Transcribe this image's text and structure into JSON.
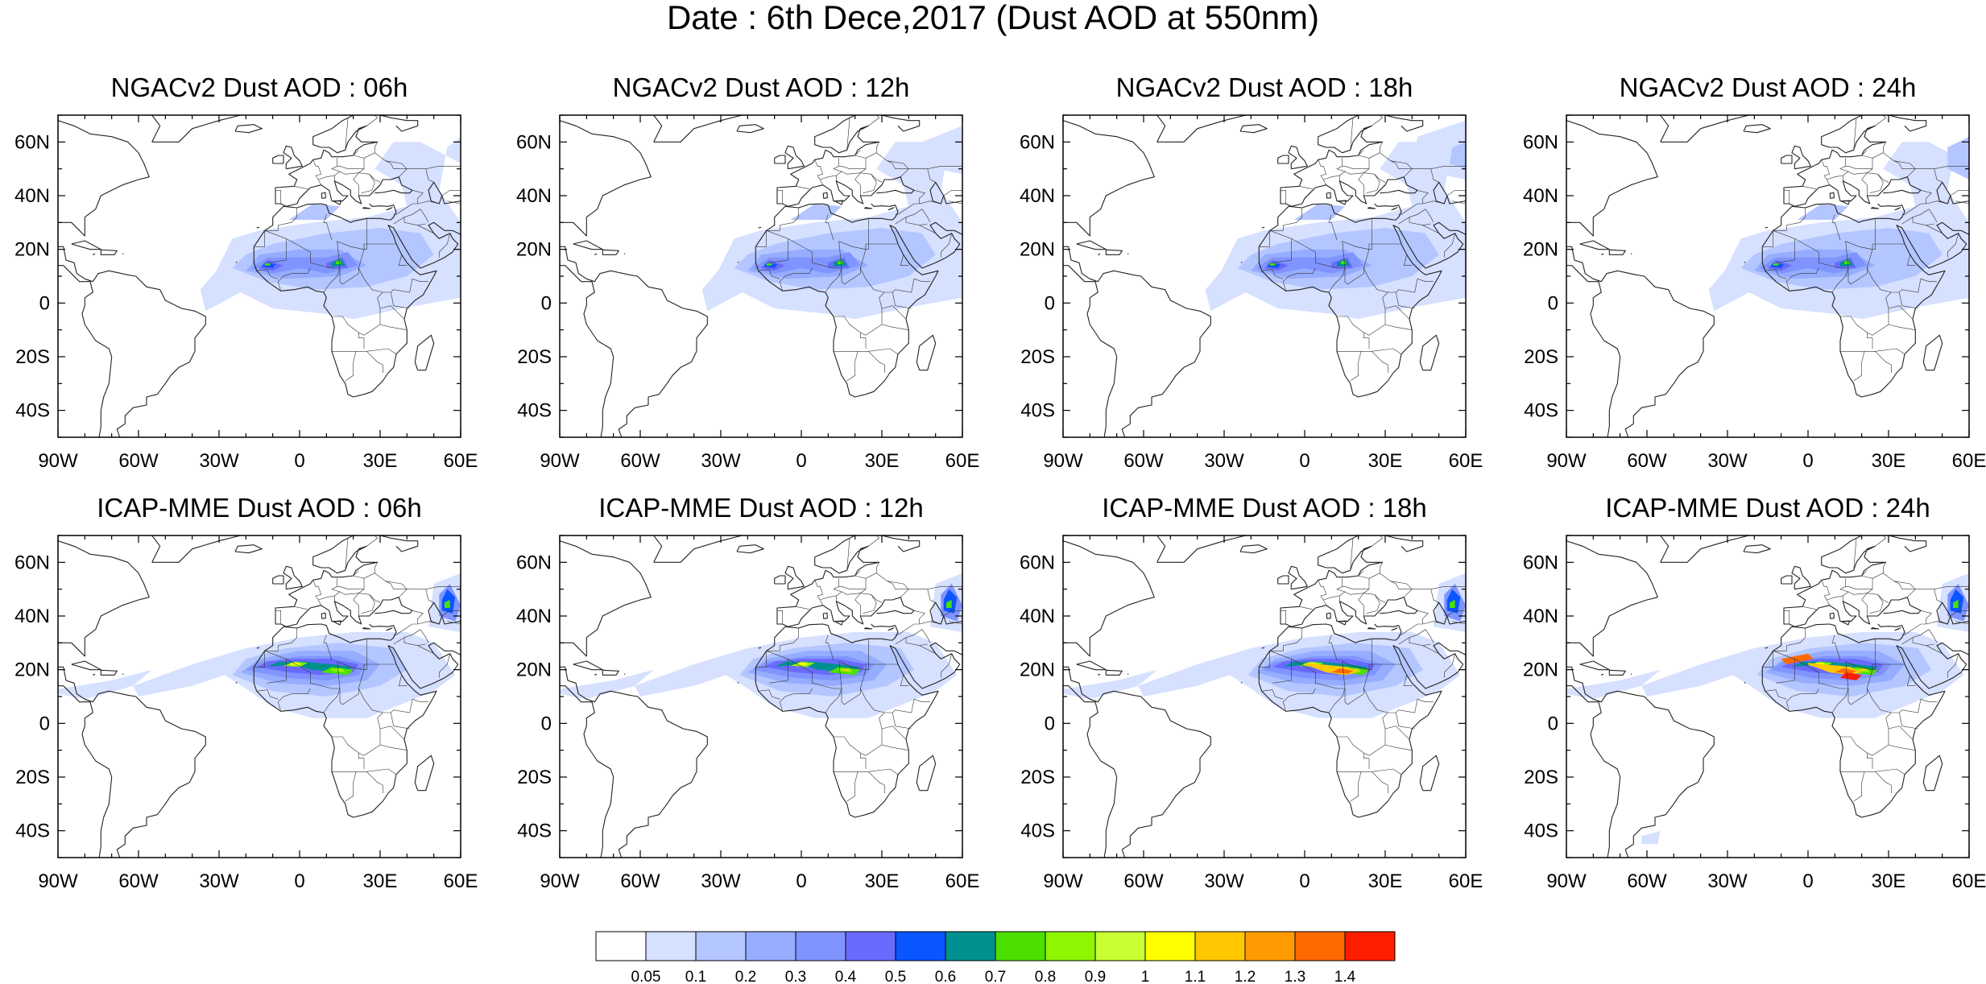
{
  "title": "Date : 6th Dece,2017 (Dust AOD at 550nm)",
  "map_extent": {
    "lon": [
      -90,
      60
    ],
    "lat": [
      -50,
      70
    ]
  },
  "lat_ticks": [
    {
      "value": 60,
      "label": "60N"
    },
    {
      "value": 40,
      "label": "40N"
    },
    {
      "value": 20,
      "label": "20N"
    },
    {
      "value": 0,
      "label": "0"
    },
    {
      "value": -20,
      "label": "20S"
    },
    {
      "value": -40,
      "label": "40S"
    }
  ],
  "lon_ticks": [
    {
      "value": -90,
      "label": "90W"
    },
    {
      "value": -60,
      "label": "60W"
    },
    {
      "value": -30,
      "label": "30W"
    },
    {
      "value": 0,
      "label": "0"
    },
    {
      "value": 30,
      "label": "30E"
    },
    {
      "value": 60,
      "label": "60E"
    }
  ],
  "panels": [
    {
      "id": "ngac-06",
      "title": "NGACv2 Dust AOD : 06h",
      "model": "NGACv2",
      "lead": "06h"
    },
    {
      "id": "ngac-12",
      "title": "NGACv2 Dust AOD : 12h",
      "model": "NGACv2",
      "lead": "12h"
    },
    {
      "id": "ngac-18",
      "title": "NGACv2 Dust AOD : 18h",
      "model": "NGACv2",
      "lead": "18h"
    },
    {
      "id": "ngac-24",
      "title": "NGACv2 Dust AOD : 24h",
      "model": "NGACv2",
      "lead": "24h"
    },
    {
      "id": "icap-06",
      "title": "ICAP-MME Dust AOD : 06h",
      "model": "ICAP-MME",
      "lead": "06h"
    },
    {
      "id": "icap-12",
      "title": "ICAP-MME Dust AOD : 12h",
      "model": "ICAP-MME",
      "lead": "12h"
    },
    {
      "id": "icap-18",
      "title": "ICAP-MME Dust AOD : 18h",
      "model": "ICAP-MME",
      "lead": "18h"
    },
    {
      "id": "icap-24",
      "title": "ICAP-MME Dust AOD : 24h",
      "model": "ICAP-MME",
      "lead": "24h"
    }
  ],
  "colorbar": {
    "labels": [
      "0.05",
      "0.1",
      "0.2",
      "0.3",
      "0.4",
      "0.5",
      "0.6",
      "0.7",
      "0.8",
      "0.9",
      "1",
      "1.1",
      "1.2",
      "1.3",
      "1.4"
    ],
    "colors": [
      "#ffffff",
      "#d6e0ff",
      "#b4c6ff",
      "#96acff",
      "#8094ff",
      "#6a6aff",
      "#0a55ff",
      "#009090",
      "#4ddf00",
      "#8ff500",
      "#c8ff32",
      "#ffff00",
      "#ffc800",
      "#ff9b00",
      "#ff6a00",
      "#ff1e00"
    ]
  }
}
